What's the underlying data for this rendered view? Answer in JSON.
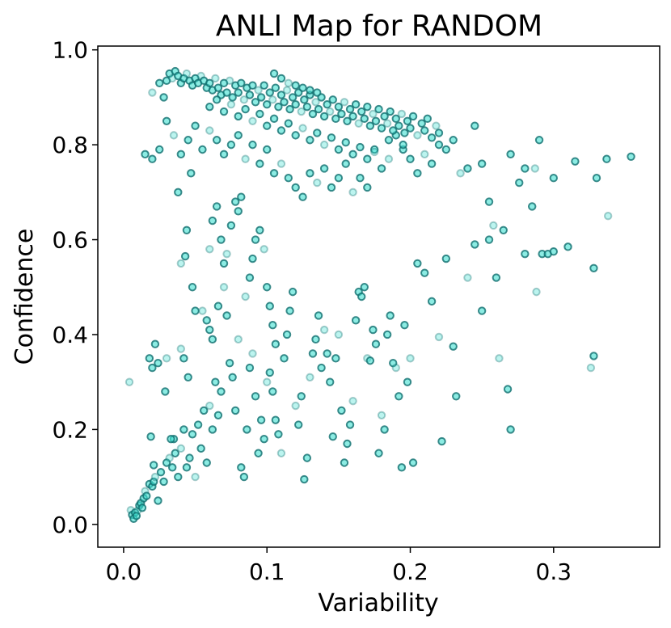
{
  "chart_data": {
    "type": "scatter",
    "title": "ANLI Map for RANDOM",
    "xlabel": "Variability",
    "ylabel": "Confidence",
    "xlim": [
      -0.018,
      0.374
    ],
    "ylim": [
      -0.048,
      1.008
    ],
    "xticks": [
      0.0,
      0.1,
      0.2,
      0.3
    ],
    "xtick_labels": [
      "0.0",
      "0.1",
      "0.2",
      "0.3"
    ],
    "yticks": [
      0.0,
      0.2,
      0.4,
      0.6,
      0.8,
      1.0
    ],
    "ytick_labels": [
      "0.0",
      "0.2",
      "0.4",
      "0.6",
      "0.8",
      "1.0"
    ],
    "grid": false,
    "legend": "none",
    "marker_fill": "#40e0d0",
    "marker_edge": "#0f6e6e",
    "points": [
      [
        0.005,
        0.03
      ],
      [
        0.006,
        0.02
      ],
      [
        0.007,
        0.012
      ],
      [
        0.008,
        0.025
      ],
      [
        0.009,
        0.018
      ],
      [
        0.01,
        0.03
      ],
      [
        0.011,
        0.04
      ],
      [
        0.012,
        0.045
      ],
      [
        0.013,
        0.035
      ],
      [
        0.014,
        0.055
      ],
      [
        0.015,
        0.07
      ],
      [
        0.016,
        0.06
      ],
      [
        0.018,
        0.085
      ],
      [
        0.02,
        0.08
      ],
      [
        0.021,
        0.09
      ],
      [
        0.022,
        0.1
      ],
      [
        0.024,
        0.05
      ],
      [
        0.026,
        0.11
      ],
      [
        0.028,
        0.09
      ],
      [
        0.03,
        0.13
      ],
      [
        0.032,
        0.14
      ],
      [
        0.034,
        0.12
      ],
      [
        0.035,
        0.18
      ],
      [
        0.036,
        0.15
      ],
      [
        0.038,
        0.1
      ],
      [
        0.04,
        0.16
      ],
      [
        0.042,
        0.2
      ],
      [
        0.044,
        0.12
      ],
      [
        0.046,
        0.14
      ],
      [
        0.048,
        0.19
      ],
      [
        0.05,
        0.1
      ],
      [
        0.052,
        0.21
      ],
      [
        0.054,
        0.16
      ],
      [
        0.056,
        0.24
      ],
      [
        0.058,
        0.13
      ],
      [
        0.06,
        0.25
      ],
      [
        0.062,
        0.2
      ],
      [
        0.064,
        0.3
      ],
      [
        0.066,
        0.23
      ],
      [
        0.068,
        0.28
      ],
      [
        0.004,
        0.3
      ],
      [
        0.018,
        0.35
      ],
      [
        0.02,
        0.33
      ],
      [
        0.022,
        0.38
      ],
      [
        0.024,
        0.34
      ],
      [
        0.03,
        0.35
      ],
      [
        0.019,
        0.185
      ],
      [
        0.021,
        0.125
      ],
      [
        0.029,
        0.28
      ],
      [
        0.033,
        0.18
      ],
      [
        0.04,
        0.37
      ],
      [
        0.042,
        0.35
      ],
      [
        0.045,
        0.31
      ],
      [
        0.048,
        0.5
      ],
      [
        0.05,
        0.45
      ],
      [
        0.04,
        0.55
      ],
      [
        0.043,
        0.565
      ],
      [
        0.038,
        0.7
      ],
      [
        0.044,
        0.62
      ],
      [
        0.047,
        0.74
      ],
      [
        0.055,
        0.45
      ],
      [
        0.058,
        0.43
      ],
      [
        0.06,
        0.41
      ],
      [
        0.062,
        0.39
      ],
      [
        0.066,
        0.46
      ],
      [
        0.07,
        0.5
      ],
      [
        0.072,
        0.44
      ],
      [
        0.074,
        0.34
      ],
      [
        0.076,
        0.31
      ],
      [
        0.078,
        0.24
      ],
      [
        0.06,
        0.58
      ],
      [
        0.062,
        0.64
      ],
      [
        0.065,
        0.67
      ],
      [
        0.068,
        0.6
      ],
      [
        0.07,
        0.55
      ],
      [
        0.072,
        0.57
      ],
      [
        0.075,
        0.63
      ],
      [
        0.078,
        0.68
      ],
      [
        0.08,
        0.66
      ],
      [
        0.082,
        0.69
      ],
      [
        0.08,
        0.39
      ],
      [
        0.082,
        0.12
      ],
      [
        0.084,
        0.1
      ],
      [
        0.086,
        0.2
      ],
      [
        0.088,
        0.33
      ],
      [
        0.09,
        0.36
      ],
      [
        0.092,
        0.27
      ],
      [
        0.094,
        0.15
      ],
      [
        0.096,
        0.22
      ],
      [
        0.098,
        0.18
      ],
      [
        0.085,
        0.48
      ],
      [
        0.088,
        0.52
      ],
      [
        0.09,
        0.56
      ],
      [
        0.092,
        0.6
      ],
      [
        0.095,
        0.62
      ],
      [
        0.098,
        0.58
      ],
      [
        0.1,
        0.5
      ],
      [
        0.102,
        0.46
      ],
      [
        0.104,
        0.42
      ],
      [
        0.106,
        0.38
      ],
      [
        0.1,
        0.3
      ],
      [
        0.102,
        0.32
      ],
      [
        0.104,
        0.28
      ],
      [
        0.106,
        0.22
      ],
      [
        0.108,
        0.19
      ],
      [
        0.11,
        0.15
      ],
      [
        0.112,
        0.35
      ],
      [
        0.114,
        0.4
      ],
      [
        0.116,
        0.45
      ],
      [
        0.118,
        0.49
      ],
      [
        0.12,
        0.25
      ],
      [
        0.122,
        0.21
      ],
      [
        0.124,
        0.27
      ],
      [
        0.126,
        0.095
      ],
      [
        0.128,
        0.14
      ],
      [
        0.13,
        0.31
      ],
      [
        0.132,
        0.36
      ],
      [
        0.134,
        0.39
      ],
      [
        0.136,
        0.44
      ],
      [
        0.138,
        0.33
      ],
      [
        0.14,
        0.41
      ],
      [
        0.142,
        0.36
      ],
      [
        0.144,
        0.3
      ],
      [
        0.146,
        0.185
      ],
      [
        0.148,
        0.35
      ],
      [
        0.15,
        0.4
      ],
      [
        0.152,
        0.24
      ],
      [
        0.154,
        0.13
      ],
      [
        0.156,
        0.17
      ],
      [
        0.158,
        0.21
      ],
      [
        0.16,
        0.26
      ],
      [
        0.162,
        0.43
      ],
      [
        0.164,
        0.49
      ],
      [
        0.166,
        0.48
      ],
      [
        0.168,
        0.5
      ],
      [
        0.17,
        0.35
      ],
      [
        0.172,
        0.345
      ],
      [
        0.174,
        0.41
      ],
      [
        0.176,
        0.38
      ],
      [
        0.178,
        0.15
      ],
      [
        0.18,
        0.23
      ],
      [
        0.182,
        0.2
      ],
      [
        0.184,
        0.4
      ],
      [
        0.186,
        0.44
      ],
      [
        0.188,
        0.34
      ],
      [
        0.19,
        0.33
      ],
      [
        0.192,
        0.27
      ],
      [
        0.194,
        0.12
      ],
      [
        0.196,
        0.42
      ],
      [
        0.198,
        0.3
      ],
      [
        0.2,
        0.35
      ],
      [
        0.202,
        0.13
      ],
      [
        0.205,
        0.55
      ],
      [
        0.21,
        0.53
      ],
      [
        0.215,
        0.47
      ],
      [
        0.22,
        0.395
      ],
      [
        0.222,
        0.175
      ],
      [
        0.225,
        0.56
      ],
      [
        0.23,
        0.375
      ],
      [
        0.232,
        0.27
      ],
      [
        0.24,
        0.52
      ],
      [
        0.245,
        0.59
      ],
      [
        0.25,
        0.45
      ],
      [
        0.255,
        0.6
      ],
      [
        0.26,
        0.52
      ],
      [
        0.262,
        0.35
      ],
      [
        0.268,
        0.285
      ],
      [
        0.27,
        0.2
      ],
      [
        0.28,
        0.57
      ],
      [
        0.285,
        0.67
      ],
      [
        0.288,
        0.49
      ],
      [
        0.292,
        0.57
      ],
      [
        0.296,
        0.57
      ],
      [
        0.3,
        0.575
      ],
      [
        0.31,
        0.585
      ],
      [
        0.326,
        0.33
      ],
      [
        0.328,
        0.355
      ],
      [
        0.328,
        0.54
      ],
      [
        0.33,
        0.73
      ],
      [
        0.337,
        0.77
      ],
      [
        0.338,
        0.65
      ],
      [
        0.354,
        0.775
      ],
      [
        0.315,
        0.765
      ],
      [
        0.3,
        0.73
      ],
      [
        0.29,
        0.81
      ],
      [
        0.287,
        0.75
      ],
      [
        0.28,
        0.75
      ],
      [
        0.276,
        0.72
      ],
      [
        0.27,
        0.78
      ],
      [
        0.265,
        0.62
      ],
      [
        0.258,
        0.63
      ],
      [
        0.255,
        0.68
      ],
      [
        0.25,
        0.76
      ],
      [
        0.245,
        0.84
      ],
      [
        0.24,
        0.75
      ],
      [
        0.235,
        0.74
      ],
      [
        0.23,
        0.81
      ],
      [
        0.225,
        0.79
      ],
      [
        0.22,
        0.8
      ],
      [
        0.215,
        0.76
      ],
      [
        0.21,
        0.78
      ],
      [
        0.205,
        0.74
      ],
      [
        0.2,
        0.77
      ],
      [
        0.195,
        0.79
      ],
      [
        0.19,
        0.82
      ],
      [
        0.185,
        0.77
      ],
      [
        0.18,
        0.75
      ],
      [
        0.175,
        0.79
      ],
      [
        0.17,
        0.71
      ],
      [
        0.165,
        0.73
      ],
      [
        0.16,
        0.7
      ],
      [
        0.155,
        0.76
      ],
      [
        0.15,
        0.73
      ],
      [
        0.145,
        0.71
      ],
      [
        0.14,
        0.75
      ],
      [
        0.135,
        0.72
      ],
      [
        0.13,
        0.74
      ],
      [
        0.125,
        0.69
      ],
      [
        0.12,
        0.71
      ],
      [
        0.115,
        0.73
      ],
      [
        0.11,
        0.76
      ],
      [
        0.105,
        0.74
      ],
      [
        0.1,
        0.79
      ],
      [
        0.095,
        0.76
      ],
      [
        0.09,
        0.8
      ],
      [
        0.085,
        0.77
      ],
      [
        0.08,
        0.82
      ],
      [
        0.075,
        0.8
      ],
      [
        0.07,
        0.78
      ],
      [
        0.065,
        0.81
      ],
      [
        0.06,
        0.83
      ],
      [
        0.055,
        0.79
      ],
      [
        0.05,
        0.84
      ],
      [
        0.045,
        0.81
      ],
      [
        0.04,
        0.78
      ],
      [
        0.035,
        0.82
      ],
      [
        0.03,
        0.85
      ],
      [
        0.025,
        0.79
      ],
      [
        0.02,
        0.77
      ],
      [
        0.015,
        0.78
      ],
      [
        0.02,
        0.91
      ],
      [
        0.025,
        0.93
      ],
      [
        0.028,
        0.9
      ],
      [
        0.03,
        0.935
      ],
      [
        0.032,
        0.95
      ],
      [
        0.034,
        0.94
      ],
      [
        0.036,
        0.955
      ],
      [
        0.038,
        0.945
      ],
      [
        0.04,
        0.93
      ],
      [
        0.042,
        0.94
      ],
      [
        0.044,
        0.95
      ],
      [
        0.046,
        0.935
      ],
      [
        0.048,
        0.925
      ],
      [
        0.05,
        0.94
      ],
      [
        0.052,
        0.93
      ],
      [
        0.054,
        0.945
      ],
      [
        0.056,
        0.935
      ],
      [
        0.058,
        0.92
      ],
      [
        0.06,
        0.93
      ],
      [
        0.062,
        0.915
      ],
      [
        0.064,
        0.94
      ],
      [
        0.066,
        0.92
      ],
      [
        0.068,
        0.905
      ],
      [
        0.07,
        0.93
      ],
      [
        0.072,
        0.91
      ],
      [
        0.074,
        0.935
      ],
      [
        0.076,
        0.9
      ],
      [
        0.078,
        0.925
      ],
      [
        0.08,
        0.91
      ],
      [
        0.082,
        0.93
      ],
      [
        0.084,
        0.895
      ],
      [
        0.086,
        0.92
      ],
      [
        0.088,
        0.905
      ],
      [
        0.09,
        0.925
      ],
      [
        0.092,
        0.89
      ],
      [
        0.094,
        0.915
      ],
      [
        0.096,
        0.9
      ],
      [
        0.098,
        0.925
      ],
      [
        0.1,
        0.885
      ],
      [
        0.102,
        0.91
      ],
      [
        0.104,
        0.895
      ],
      [
        0.106,
        0.92
      ],
      [
        0.108,
        0.88
      ],
      [
        0.11,
        0.905
      ],
      [
        0.112,
        0.89
      ],
      [
        0.114,
        0.915
      ],
      [
        0.116,
        0.875
      ],
      [
        0.118,
        0.9
      ],
      [
        0.12,
        0.885
      ],
      [
        0.122,
        0.91
      ],
      [
        0.124,
        0.87
      ],
      [
        0.126,
        0.895
      ],
      [
        0.128,
        0.88
      ],
      [
        0.13,
        0.905
      ],
      [
        0.132,
        0.865
      ],
      [
        0.134,
        0.89
      ],
      [
        0.136,
        0.875
      ],
      [
        0.138,
        0.9
      ],
      [
        0.14,
        0.86
      ],
      [
        0.142,
        0.885
      ],
      [
        0.144,
        0.87
      ],
      [
        0.146,
        0.895
      ],
      [
        0.148,
        0.855
      ],
      [
        0.15,
        0.88
      ],
      [
        0.152,
        0.865
      ],
      [
        0.154,
        0.89
      ],
      [
        0.156,
        0.85
      ],
      [
        0.158,
        0.875
      ],
      [
        0.16,
        0.86
      ],
      [
        0.162,
        0.885
      ],
      [
        0.164,
        0.845
      ],
      [
        0.166,
        0.87
      ],
      [
        0.168,
        0.855
      ],
      [
        0.17,
        0.88
      ],
      [
        0.172,
        0.84
      ],
      [
        0.174,
        0.865
      ],
      [
        0.176,
        0.85
      ],
      [
        0.178,
        0.875
      ],
      [
        0.18,
        0.835
      ],
      [
        0.182,
        0.86
      ],
      [
        0.184,
        0.845
      ],
      [
        0.186,
        0.87
      ],
      [
        0.188,
        0.83
      ],
      [
        0.19,
        0.855
      ],
      [
        0.192,
        0.84
      ],
      [
        0.194,
        0.865
      ],
      [
        0.196,
        0.825
      ],
      [
        0.198,
        0.85
      ],
      [
        0.2,
        0.835
      ],
      [
        0.202,
        0.86
      ],
      [
        0.205,
        0.82
      ],
      [
        0.208,
        0.845
      ],
      [
        0.21,
        0.83
      ],
      [
        0.212,
        0.855
      ],
      [
        0.215,
        0.815
      ],
      [
        0.218,
        0.84
      ],
      [
        0.22,
        0.825
      ],
      [
        0.06,
        0.88
      ],
      [
        0.07,
        0.87
      ],
      [
        0.08,
        0.86
      ],
      [
        0.09,
        0.85
      ],
      [
        0.1,
        0.84
      ],
      [
        0.11,
        0.83
      ],
      [
        0.12,
        0.82
      ],
      [
        0.13,
        0.81
      ],
      [
        0.14,
        0.8
      ],
      [
        0.15,
        0.79
      ],
      [
        0.16,
        0.78
      ],
      [
        0.17,
        0.77
      ],
      [
        0.065,
        0.895
      ],
      [
        0.075,
        0.885
      ],
      [
        0.085,
        0.875
      ],
      [
        0.095,
        0.865
      ],
      [
        0.105,
        0.855
      ],
      [
        0.115,
        0.845
      ],
      [
        0.125,
        0.835
      ],
      [
        0.135,
        0.825
      ],
      [
        0.145,
        0.815
      ],
      [
        0.155,
        0.805
      ],
      [
        0.165,
        0.795
      ],
      [
        0.175,
        0.785
      ],
      [
        0.185,
        0.81
      ],
      [
        0.195,
        0.8
      ],
      [
        0.105,
        0.95
      ],
      [
        0.11,
        0.94
      ],
      [
        0.115,
        0.93
      ],
      [
        0.12,
        0.925
      ],
      [
        0.125,
        0.92
      ],
      [
        0.13,
        0.915
      ],
      [
        0.135,
        0.91
      ]
    ]
  }
}
